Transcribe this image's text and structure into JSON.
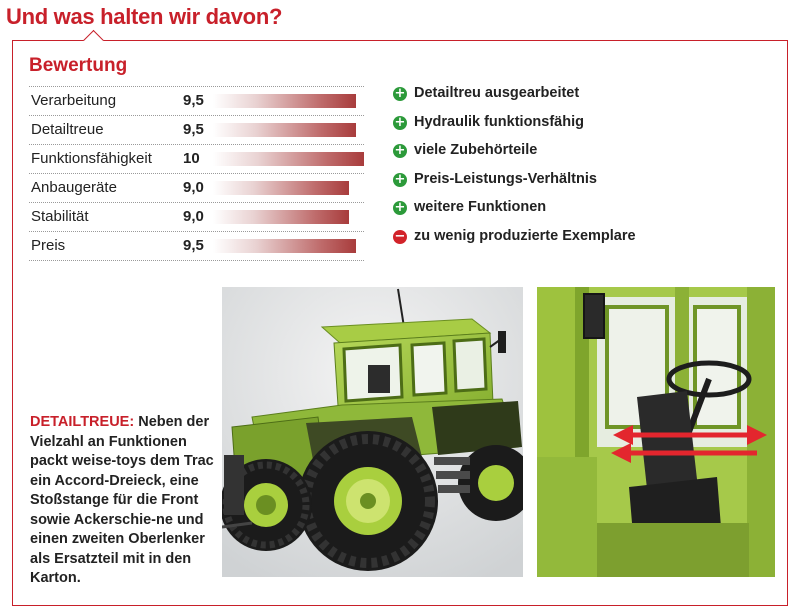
{
  "headline": "Und was halten wir davon?",
  "rating": {
    "title": "Bewertung",
    "items": [
      {
        "label": "Verarbeitung",
        "value": "9,5",
        "score": 9.5
      },
      {
        "label": "Detailtreue",
        "value": "9,5",
        "score": 9.5
      },
      {
        "label": "Funktionsfähigkeit",
        "value": "10",
        "score": 10
      },
      {
        "label": "Anbaugeräte",
        "value": "9,0",
        "score": 9.0
      },
      {
        "label": "Stabilität",
        "value": "9,0",
        "score": 9.0
      },
      {
        "label": "Preis",
        "value": "9,5",
        "score": 9.5
      }
    ],
    "max_score": 10
  },
  "pros_cons": [
    {
      "type": "plus",
      "icon": "plus-circle-icon",
      "text": "Detailtreu ausgearbeitet"
    },
    {
      "type": "plus",
      "icon": "plus-circle-icon",
      "text": "Hydraulik funktionsfähig"
    },
    {
      "type": "plus",
      "icon": "plus-circle-icon",
      "text": "viele Zubehörteile"
    },
    {
      "type": "plus",
      "icon": "plus-circle-icon",
      "text": "Preis-Leistungs-Verhältnis"
    },
    {
      "type": "plus",
      "icon": "plus-circle-icon",
      "text": "weitere Funktionen"
    },
    {
      "type": "minus",
      "icon": "minus-circle-icon",
      "text": "zu wenig produzierte Exemplare"
    }
  ],
  "caption": {
    "lead": "DETAILTREUE:",
    "text": " Neben der Vielzahl an Funktionen packt weise-toys dem Trac ein Accord-Dreieck, eine Stoßstange für die Front sowie  Ackerschie-ne und einen zweiten Oberlenker als Ersatzteil mit in den Karton."
  },
  "colors": {
    "accent": "#c8202a",
    "plus": "#2c9a3a",
    "minus": "#d2232a",
    "tractor_green": "#9ac43a"
  }
}
